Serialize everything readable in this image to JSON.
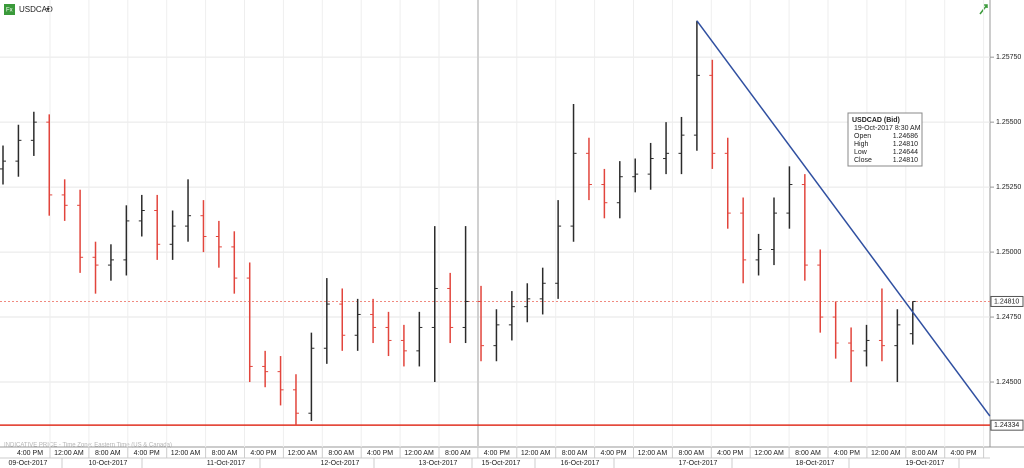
{
  "chart_data": {
    "type": "ohlc",
    "symbol": "USDCAD",
    "footnote": "INDICATIVE PRICE - Time Zone: Eastern Time (US & Canada)",
    "up_color": "#2b2b2b",
    "down_color": "#e2453c",
    "grid": true,
    "ylim": [
      1.2425,
      1.2597
    ],
    "yticks": [
      {
        "value": 1.245,
        "label": "1.24500"
      },
      {
        "value": 1.2475,
        "label": "1.24750"
      },
      {
        "value": 1.25,
        "label": "1.25000"
      },
      {
        "value": 1.2525,
        "label": "1.25250"
      },
      {
        "value": 1.255,
        "label": "1.25500"
      },
      {
        "value": 1.2575,
        "label": "1.25750"
      }
    ],
    "open": [
      1.2532,
      1.2535,
      1.2543,
      1.255,
      1.2522,
      1.2518,
      1.2498,
      1.2495,
      1.2497,
      1.2512,
      1.2516,
      1.2503,
      1.251,
      1.2514,
      1.2506,
      1.2502,
      1.249,
      1.2456,
      1.2454,
      1.2447,
      1.2438,
      1.2463,
      1.248,
      1.2468,
      1.2476,
      1.2471,
      1.2466,
      1.2462,
      1.2471,
      1.2486,
      1.2471,
      1.2481,
      1.2464,
      1.2472,
      1.2479,
      1.2482,
      1.2488,
      1.251,
      1.2538,
      1.2526,
      1.2519,
      1.2529,
      1.253,
      1.2536,
      1.2538,
      1.2545,
      1.2568,
      1.2538,
      1.2515,
      1.2497,
      1.2501,
      1.2515,
      1.2526,
      1.2495,
      1.2475,
      1.2465,
      1.2462,
      1.2466,
      1.2464,
      1.24686
    ],
    "high": [
      1.2541,
      1.2549,
      1.2554,
      1.2553,
      1.2528,
      1.2524,
      1.2504,
      1.2503,
      1.2518,
      1.2522,
      1.2522,
      1.2516,
      1.2528,
      1.252,
      1.2512,
      1.2508,
      1.2496,
      1.2462,
      1.246,
      1.2453,
      1.2469,
      1.249,
      1.2486,
      1.2482,
      1.2482,
      1.2477,
      1.2472,
      1.2477,
      1.251,
      1.2492,
      1.251,
      1.2487,
      1.2478,
      1.2485,
      1.2488,
      1.2494,
      1.252,
      1.2557,
      1.2544,
      1.2532,
      1.2535,
      1.2536,
      1.2542,
      1.255,
      1.2552,
      1.2589,
      1.2574,
      1.2544,
      1.2521,
      1.2507,
      1.2521,
      1.2533,
      1.253,
      1.2501,
      1.2481,
      1.2471,
      1.2472,
      1.2486,
      1.2478,
      1.2481
    ],
    "low": [
      1.2526,
      1.2529,
      1.2537,
      1.2514,
      1.2512,
      1.2492,
      1.2484,
      1.2489,
      1.2491,
      1.2506,
      1.2497,
      1.2497,
      1.2504,
      1.25,
      1.2494,
      1.2484,
      1.245,
      1.2448,
      1.2441,
      1.24334,
      1.2435,
      1.2457,
      1.2462,
      1.2462,
      1.2465,
      1.246,
      1.2456,
      1.2456,
      1.245,
      1.2465,
      1.2465,
      1.2458,
      1.2458,
      1.2466,
      1.2473,
      1.2476,
      1.2482,
      1.2504,
      1.252,
      1.2513,
      1.2513,
      1.2523,
      1.2524,
      1.253,
      1.253,
      1.2539,
      1.2532,
      1.2509,
      1.2488,
      1.2491,
      1.2495,
      1.2509,
      1.2489,
      1.2469,
      1.2459,
      1.245,
      1.2456,
      1.2458,
      1.245,
      1.24644
    ],
    "close": [
      1.2535,
      1.2543,
      1.255,
      1.2522,
      1.2518,
      1.2498,
      1.2495,
      1.2497,
      1.2512,
      1.2516,
      1.2503,
      1.251,
      1.2514,
      1.2506,
      1.2502,
      1.249,
      1.2456,
      1.2454,
      1.2447,
      1.2438,
      1.2463,
      1.248,
      1.2468,
      1.2476,
      1.2471,
      1.2466,
      1.2462,
      1.2471,
      1.2486,
      1.2471,
      1.2481,
      1.2464,
      1.2472,
      1.2479,
      1.2482,
      1.2488,
      1.251,
      1.2538,
      1.2526,
      1.2519,
      1.2529,
      1.253,
      1.2536,
      1.2538,
      1.2545,
      1.2568,
      1.2538,
      1.2515,
      1.2497,
      1.2501,
      1.2515,
      1.2526,
      1.2495,
      1.2475,
      1.2465,
      1.2462,
      1.2466,
      1.2464,
      1.2472,
      1.2481
    ],
    "last_price": {
      "value": 1.2481,
      "label": "1.24810",
      "color": "#f08a80"
    },
    "support_line": {
      "value": 1.24334,
      "label": "1.24334",
      "color": "#e03020"
    },
    "trendline": {
      "x": [
        45,
        64
      ],
      "y": [
        1.2589,
        1.24369
      ],
      "color": "#2f4fa0"
    },
    "time_labels": [
      "4:00 PM",
      "12:00 AM",
      "8:00 AM",
      "4:00 PM",
      "12:00 AM",
      "8:00 AM",
      "4:00 PM",
      "12:00 AM",
      "8:00 AM",
      "4:00 PM",
      "12:00 AM",
      "8:00 AM",
      "4:00 PM",
      "12:00 AM",
      "8:00 AM",
      "4:00 PM",
      "12:00 AM",
      "8:00 AM",
      "4:00 PM",
      "12:00 AM",
      "8:00 AM",
      "4:00 PM",
      "12:00 AM",
      "8:00 AM",
      "4:00 PM"
    ],
    "date_labels": [
      "09-Oct-2017",
      "10-Oct-2017",
      "11-Oct-2017",
      "12-Oct-2017",
      "13-Oct-2017",
      "15-Oct-2017",
      "16-Oct-2017",
      "17-Oct-2017",
      "18-Oct-2017",
      "19-Oct-2017"
    ],
    "tooltip": {
      "title": "USDCAD (Bid)",
      "time": "19-Oct-2017 8:30 AM",
      "rows": [
        [
          "Open",
          "1.24686"
        ],
        [
          "High",
          "1.24810"
        ],
        [
          "Low",
          "1.24644"
        ],
        [
          "Close",
          "1.24810"
        ]
      ]
    }
  }
}
